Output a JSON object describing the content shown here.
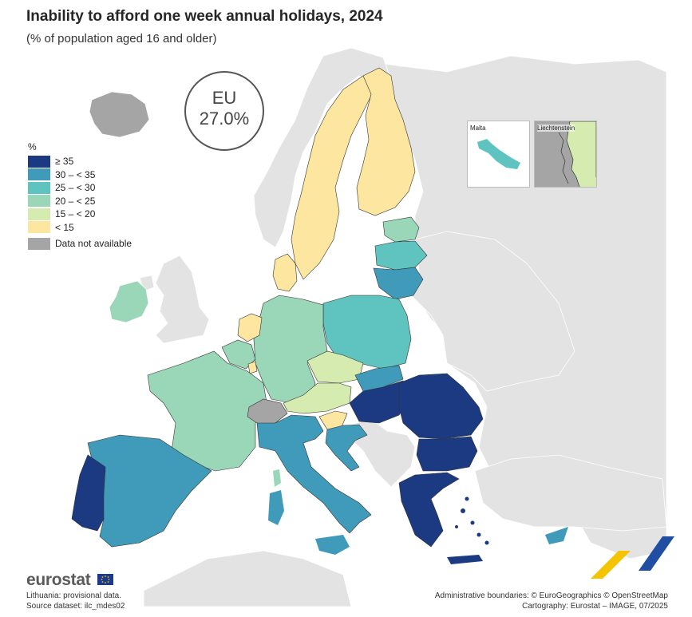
{
  "title": "Inability to afford one week annual holidays, 2024",
  "subtitle": "(% of population aged 16 and older)",
  "eu_badge": {
    "label": "EU",
    "value": "27.0%"
  },
  "legend": {
    "unit": "%",
    "classes": [
      {
        "label": "≥ 35",
        "color": "#1b3a82"
      },
      {
        "label": "30 – < 35",
        "color": "#3f9bb9"
      },
      {
        "label": "25 – < 30",
        "color": "#5fc3c0"
      },
      {
        "label": "20 – < 25",
        "color": "#99d7b8"
      },
      {
        "label": "15 – < 20",
        "color": "#d6ebb0"
      },
      {
        "label": "< 15",
        "color": "#fde6a0"
      }
    ],
    "not_available": {
      "label": "Data not available",
      "color": "#a5a5a5"
    }
  },
  "insets": {
    "malta": "Malta",
    "liechtenstein": "Liechtenstein"
  },
  "chart_data": {
    "type": "choropleth",
    "title": "Inability to afford one week annual holidays, 2024",
    "unit": "% of population aged 16 and older",
    "eu_value": 27.0,
    "countries_by_class": {
      "≥ 35": [
        "Portugal",
        "Hungary",
        "Romania",
        "Bulgaria",
        "Greece"
      ],
      "30 – < 35": [
        "Spain",
        "Italy",
        "Lithuania",
        "Slovakia",
        "Croatia",
        "Cyprus"
      ],
      "25 – < 30": [
        "Poland",
        "Latvia",
        "Malta"
      ],
      "20 – < 25": [
        "France",
        "Germany",
        "Ireland",
        "Belgium",
        "Estonia"
      ],
      "15 – < 20": [
        "Czechia",
        "Austria",
        "Liechtenstein"
      ],
      "< 15": [
        "Sweden",
        "Finland",
        "Denmark",
        "Netherlands",
        "Luxembourg",
        "Slovenia"
      ],
      "Data not available": [
        "Iceland",
        "Switzerland"
      ]
    }
  },
  "footer": {
    "logo": "eurostat",
    "note1": "Lithuania: provisional data.",
    "note2": "Source dataset: ilc_mdes02",
    "credit1": "Administrative boundaries: © EuroGeographics © OpenStreetMap",
    "credit2": "Cartography: Eurostat – IMAGE, 07/2025"
  }
}
